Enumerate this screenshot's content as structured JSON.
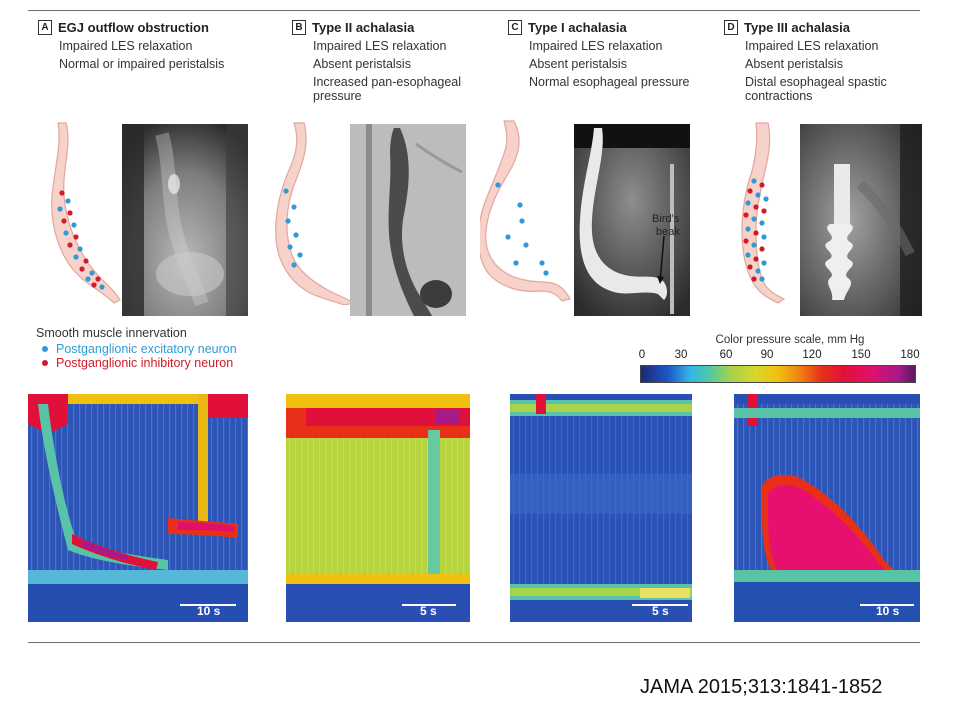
{
  "panels": [
    {
      "letter": "A",
      "title": "EGJ outflow obstruction",
      "lines": [
        "Impaired LES relaxation",
        "Normal or impaired peristalsis"
      ],
      "scale_label": "10 s"
    },
    {
      "letter": "B",
      "title": "Type II achalasia",
      "lines": [
        "Impaired LES relaxation",
        "Absent peristalsis",
        "Increased pan-esophageal",
        "pressure"
      ],
      "scale_label": "5 s"
    },
    {
      "letter": "C",
      "title": "Type I achalasia",
      "lines": [
        "Impaired LES relaxation",
        "Absent peristalsis",
        "Normal esophageal pressure"
      ],
      "scale_label": "5 s"
    },
    {
      "letter": "D",
      "title": "Type III achalasia",
      "lines": [
        "Impaired LES relaxation",
        "Absent peristalsis",
        "Distal esophageal spastic",
        "contractions"
      ],
      "scale_label": "10 s"
    }
  ],
  "annotation": {
    "line1": "Bird’s",
    "line2": "beak"
  },
  "legend": {
    "title": "Smooth muscle innervation",
    "items": [
      {
        "label": "Postganglionic excitatory neuron",
        "color": "#2e9bd6"
      },
      {
        "label": "Postganglionic inhibitory neuron",
        "color": "#d11a2a"
      }
    ]
  },
  "pressure_scale": {
    "title": "Color pressure scale, mm Hg",
    "ticks": [
      "0",
      "30",
      "60",
      "90",
      "120",
      "150",
      "180"
    ]
  },
  "citation": "JAMA 2015;313:1841-1852",
  "colors": {
    "excitatory": "#2e9bd6",
    "inhibitory": "#d11a2a",
    "esophagus_fill": "#f6d2cb",
    "esophagus_edge": "#e2a79d"
  }
}
